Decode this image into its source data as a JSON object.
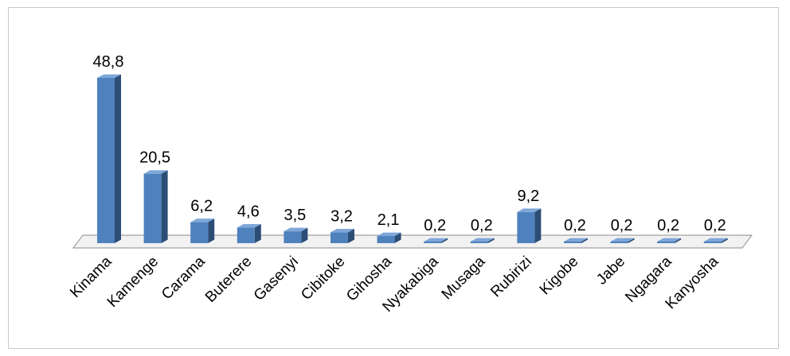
{
  "chart_data": {
    "type": "bar",
    "categories": [
      "Kinama",
      "Kamenge",
      "Carama",
      "Buterere",
      "Gasenyi",
      "Cibitoke",
      "Gihosha",
      "Nyakabiga",
      "Musaga",
      "Rubirizi",
      "Kigobe",
      "Jabe",
      "Ngagara",
      "Kanyosha"
    ],
    "values": [
      48.8,
      20.5,
      6.2,
      4.6,
      3.5,
      3.2,
      2.1,
      0.2,
      0.2,
      9.2,
      0.2,
      0.2,
      0.2,
      0.2
    ],
    "value_labels": [
      "48,8",
      "20,5",
      "6,2",
      "4,6",
      "3,5",
      "3,2",
      "2,1",
      "0,2",
      "0,2",
      "9,2",
      "0,2",
      "0,2",
      "0,2",
      "0,2"
    ],
    "style": "3d-column",
    "grid": false,
    "legend": "none",
    "colors": {
      "bar_front": "#4f81bd",
      "bar_side": "#2c4d75",
      "bar_top": "#7ea6d8",
      "floor": "#f2f2f2",
      "floor_stroke": "#8c8c8c"
    }
  }
}
